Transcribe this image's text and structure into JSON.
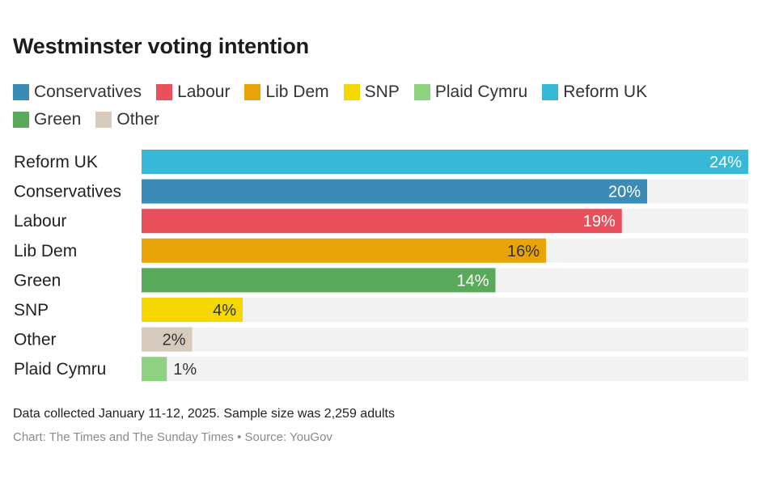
{
  "colors": {
    "reform_uk": "#36b8d6",
    "conservatives": "#3a8bb5",
    "labour": "#e8505b",
    "lib_dem": "#e8a406",
    "snp": "#f5d800",
    "plaid_cymru": "#8ed180",
    "green": "#5aa95a",
    "other": "#d6cbbd",
    "track": "#f2f2f2"
  },
  "legend": [
    {
      "label": "Conservatives",
      "color": "#3a8bb5"
    },
    {
      "label": "Labour",
      "color": "#e8505b"
    },
    {
      "label": "Lib Dem",
      "color": "#e8a406"
    },
    {
      "label": "SNP",
      "color": "#f5d800"
    },
    {
      "label": "Plaid Cymru",
      "color": "#8ed180"
    },
    {
      "label": "Reform UK",
      "color": "#36b8d6"
    },
    {
      "label": "Green",
      "color": "#5aa95a"
    },
    {
      "label": "Other",
      "color": "#d6cbbd"
    }
  ],
  "chart_data": {
    "type": "bar",
    "orientation": "horizontal",
    "title": "Westminster voting intention",
    "categories": [
      "Reform UK",
      "Conservatives",
      "Labour",
      "Lib Dem",
      "Green",
      "SNP",
      "Other",
      "Plaid Cymru"
    ],
    "values": [
      24,
      20,
      19,
      16,
      14,
      4,
      2,
      1
    ],
    "value_labels": [
      "24%",
      "20%",
      "19%",
      "16%",
      "14%",
      "4%",
      "2%",
      "1%"
    ],
    "bar_colors": [
      "#36b8d6",
      "#3a8bb5",
      "#e8505b",
      "#e8a406",
      "#5aa95a",
      "#f5d800",
      "#d6cbbd",
      "#8ed180"
    ],
    "label_colors": [
      "#ffffff",
      "#ffffff",
      "#ffffff",
      "#333333",
      "#ffffff",
      "#333333",
      "#333333",
      "#333333"
    ],
    "xlim": [
      0,
      24
    ],
    "xlabel": "",
    "ylabel": "",
    "grid": false,
    "legend_position": "top"
  },
  "footnote": "Data collected January 11-12, 2025. Sample size was 2,259 adults",
  "credit": "Chart: The Times and The Sunday Times • Source: YouGov"
}
